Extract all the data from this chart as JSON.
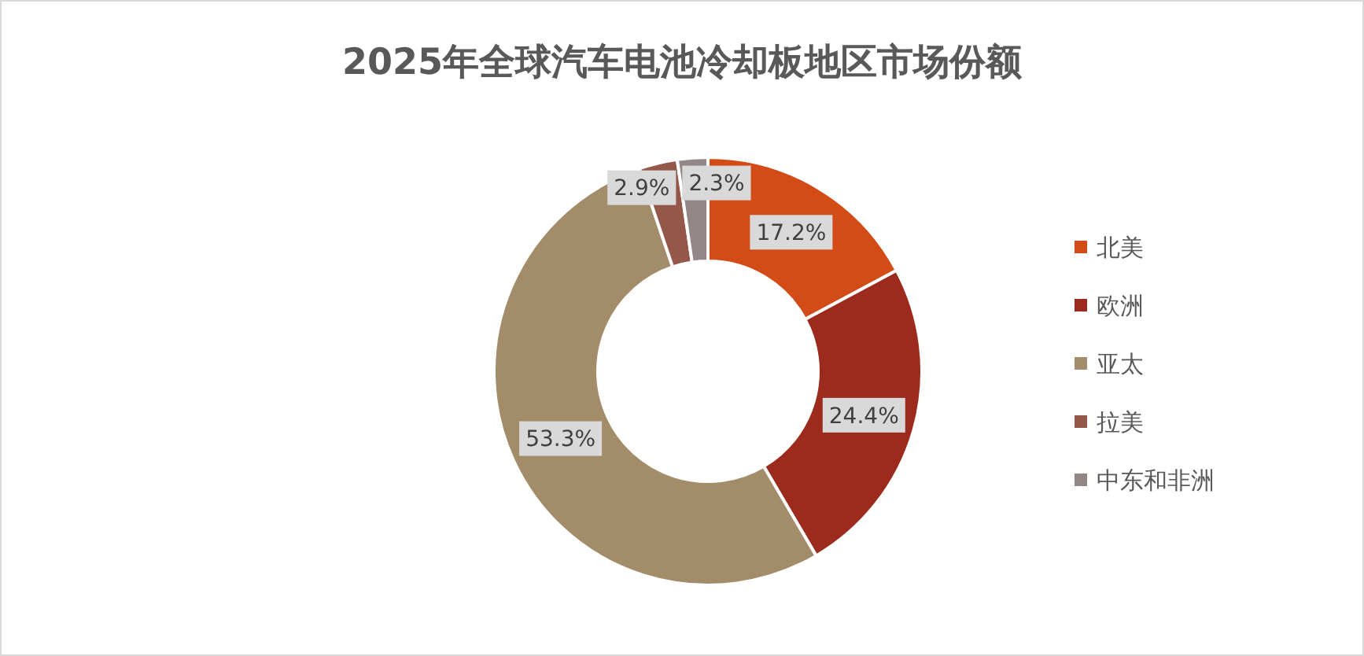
{
  "chart_data": {
    "type": "donut",
    "title": "2025年全球汽车电池冷却板地区市场份额",
    "categories": [
      "北美",
      "欧洲",
      "亚太",
      "拉美",
      "中东和非洲"
    ],
    "values": [
      17.2,
      24.4,
      53.3,
      2.9,
      2.3
    ],
    "colors": [
      "#d34b17",
      "#9c2b1d",
      "#a38c69",
      "#94584b",
      "#928787"
    ],
    "value_labels": [
      "17.2%",
      "24.4%",
      "53.3%",
      "2.9%",
      "2.3%"
    ],
    "legend": "right"
  }
}
